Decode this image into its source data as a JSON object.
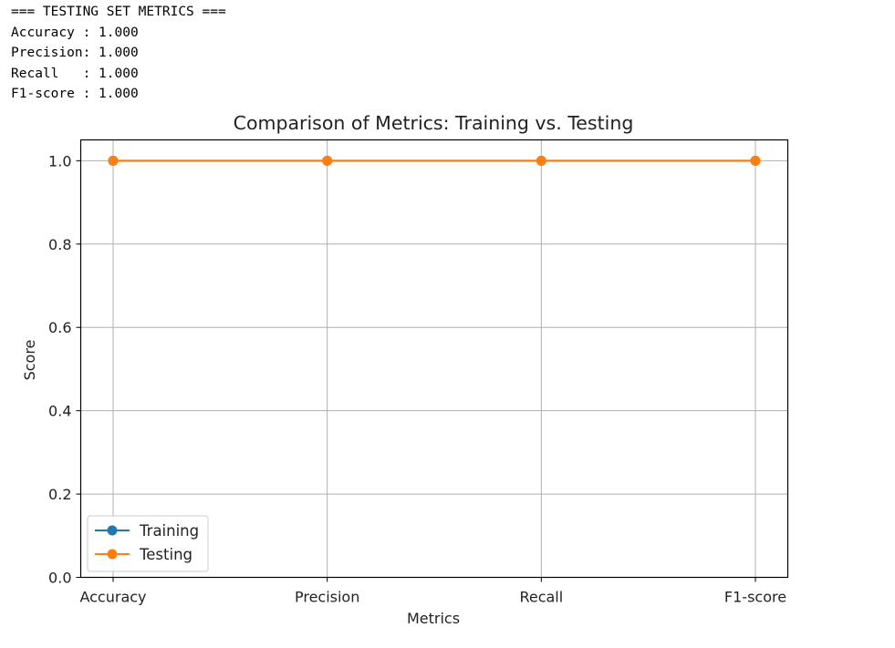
{
  "console": {
    "lines": [
      "=== TESTING SET METRICS ===",
      "Accuracy : 1.000",
      "Precision: 1.000",
      "Recall   : 1.000",
      "F1-score : 1.000"
    ]
  },
  "chart_data": {
    "type": "line",
    "title": "Comparison of Metrics: Training vs. Testing",
    "xlabel": "Metrics",
    "ylabel": "Score",
    "categories": [
      "Accuracy",
      "Precision",
      "Recall",
      "F1-score"
    ],
    "series": [
      {
        "name": "Training",
        "values": [
          1.0,
          1.0,
          1.0,
          1.0
        ],
        "color": "#1f77b4",
        "marker": "circle"
      },
      {
        "name": "Testing",
        "values": [
          1.0,
          1.0,
          1.0,
          1.0
        ],
        "color": "#ff7f0e",
        "marker": "circle"
      }
    ],
    "ylim": [
      0,
      1.05
    ],
    "yticks": [
      "0.0",
      "0.2",
      "0.4",
      "0.6",
      "0.8",
      "1.0"
    ],
    "grid": true,
    "legend_position": "lower-left"
  }
}
